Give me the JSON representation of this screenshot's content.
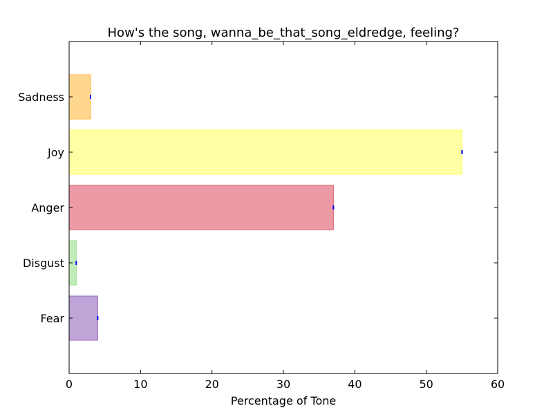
{
  "chart_data": {
    "type": "bar",
    "orientation": "horizontal",
    "title": "How's the song, wanna_be_that_song_eldredge, feeling?",
    "xlabel": "Percentage of Tone",
    "ylabel": "",
    "xlim": [
      0,
      60
    ],
    "xticks": [
      0,
      10,
      20,
      30,
      40,
      50,
      60
    ],
    "grid": false,
    "legend": "none",
    "categories": [
      "Fear",
      "Disgust",
      "Anger",
      "Joy",
      "Sadness"
    ],
    "values": [
      4,
      1,
      37,
      55,
      3
    ],
    "colors": [
      "#9467bd",
      "#98df8a",
      "#e0576b",
      "#ffff66",
      "#ffbb44"
    ],
    "marker_color": "#0000ff"
  }
}
